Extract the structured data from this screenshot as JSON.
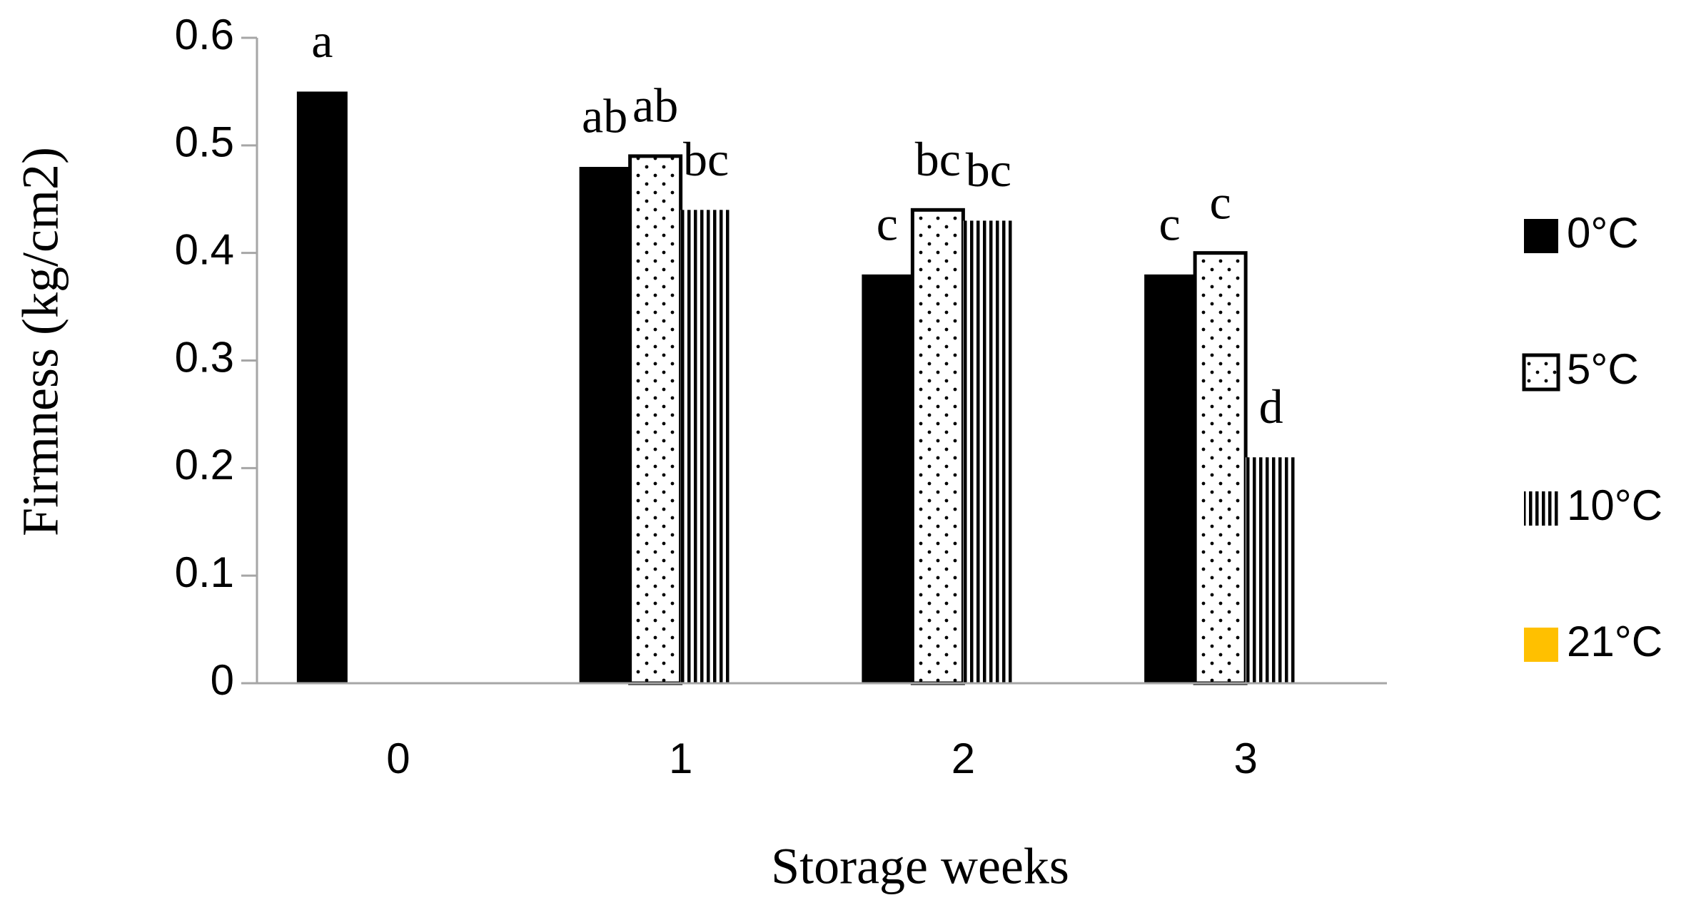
{
  "chart_data": {
    "type": "bar",
    "categories": [
      "0",
      "1",
      "2",
      "3"
    ],
    "series": [
      {
        "name": "0°C",
        "color": "#000000",
        "pattern": "solid",
        "values": [
          0.55,
          0.48,
          0.38,
          0.38
        ],
        "letters": [
          "a",
          "ab",
          "c",
          "c"
        ]
      },
      {
        "name": "5°C",
        "color": "#000000",
        "pattern": "dots",
        "values": [
          null,
          0.49,
          0.44,
          0.4
        ],
        "letters": [
          null,
          "ab",
          "bc",
          "c"
        ]
      },
      {
        "name": "10°C",
        "color": "#000000",
        "pattern": "stripes",
        "values": [
          null,
          0.44,
          0.43,
          0.21
        ],
        "letters": [
          null,
          "bc",
          "bc",
          "d"
        ]
      },
      {
        "name": "21°C",
        "color": "#FFC000",
        "pattern": "solid",
        "values": [
          null,
          null,
          null,
          null
        ],
        "letters": [
          null,
          null,
          null,
          null
        ]
      }
    ],
    "ylim": [
      0,
      0.6
    ],
    "yticks": [
      0,
      0.1,
      0.2,
      0.3,
      0.4,
      0.5,
      0.6
    ],
    "xlabel": "Storage weeks",
    "ylabel": "Firmness (kg/cm2)",
    "legend": "right"
  }
}
